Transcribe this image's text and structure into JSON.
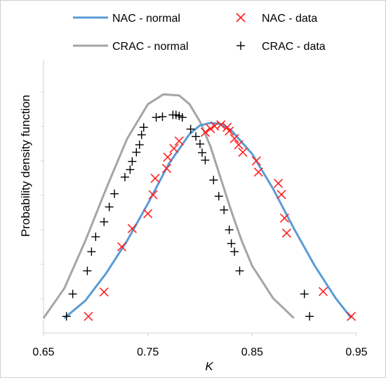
{
  "chart_data": {
    "type": "scatter",
    "title": "",
    "xlabel": "K",
    "ylabel": "Probability density function",
    "xlim": [
      0.65,
      0.95
    ],
    "ylim": [
      0,
      1
    ],
    "x_ticks": [
      "0.65",
      "0.75",
      "0.85",
      "0.95"
    ],
    "y_ticks_labeled": false,
    "grid": false,
    "legend_position": "top",
    "series": [
      {
        "name": "NAC - normal",
        "kind": "line",
        "color": "#5b9bd5",
        "x": [
          0.67,
          0.69,
          0.71,
          0.73,
          0.75,
          0.77,
          0.79,
          0.8,
          0.81,
          0.82,
          0.83,
          0.85,
          0.87,
          0.89,
          0.91,
          0.93,
          0.945
        ],
        "y": [
          0.06,
          0.13,
          0.24,
          0.37,
          0.52,
          0.68,
          0.8,
          0.835,
          0.845,
          0.84,
          0.815,
          0.72,
          0.58,
          0.42,
          0.27,
          0.14,
          0.06
        ]
      },
      {
        "name": "CRAC - normal",
        "kind": "line",
        "color": "#a5a5a5",
        "x": [
          0.65,
          0.67,
          0.69,
          0.71,
          0.73,
          0.75,
          0.765,
          0.78,
          0.79,
          0.8,
          0.81,
          0.82,
          0.83,
          0.84,
          0.85,
          0.87,
          0.89
        ],
        "y": [
          0.06,
          0.18,
          0.37,
          0.58,
          0.78,
          0.92,
          0.96,
          0.955,
          0.92,
          0.85,
          0.75,
          0.62,
          0.49,
          0.37,
          0.27,
          0.14,
          0.06
        ]
      },
      {
        "name": "NAC - data",
        "kind": "scatter",
        "marker": "x",
        "color": "#ff2020",
        "x": [
          0.693,
          0.708,
          0.725,
          0.735,
          0.75,
          0.755,
          0.757,
          0.768,
          0.769,
          0.775,
          0.78,
          0.805,
          0.81,
          0.814,
          0.82,
          0.826,
          0.828,
          0.833,
          0.837,
          0.841,
          0.854,
          0.856,
          0.875,
          0.878,
          0.881,
          0.883,
          0.918,
          0.945
        ],
        "y": [
          0.067,
          0.165,
          0.347,
          0.42,
          0.48,
          0.556,
          0.622,
          0.662,
          0.707,
          0.742,
          0.772,
          0.807,
          0.822,
          0.832,
          0.837,
          0.827,
          0.812,
          0.782,
          0.757,
          0.727,
          0.692,
          0.647,
          0.602,
          0.557,
          0.462,
          0.402,
          0.167,
          0.067
        ]
      },
      {
        "name": "CRAC - data",
        "kind": "scatter",
        "marker": "+",
        "color": "#000000",
        "x": [
          0.672,
          0.678,
          0.692,
          0.696,
          0.7,
          0.708,
          0.713,
          0.718,
          0.728,
          0.733,
          0.735,
          0.739,
          0.742,
          0.744,
          0.746,
          0.758,
          0.764,
          0.774,
          0.777,
          0.78,
          0.783,
          0.791,
          0.796,
          0.8,
          0.802,
          0.805,
          0.813,
          0.818,
          0.823,
          0.828,
          0.83,
          0.833,
          0.838,
          0.9,
          0.905
        ],
        "y": [
          0.067,
          0.157,
          0.25,
          0.327,
          0.387,
          0.447,
          0.507,
          0.56,
          0.627,
          0.657,
          0.69,
          0.727,
          0.757,
          0.797,
          0.827,
          0.867,
          0.87,
          0.877,
          0.877,
          0.873,
          0.867,
          0.82,
          0.79,
          0.76,
          0.725,
          0.695,
          0.615,
          0.55,
          0.495,
          0.415,
          0.36,
          0.327,
          0.25,
          0.157,
          0.067
        ]
      }
    ]
  }
}
